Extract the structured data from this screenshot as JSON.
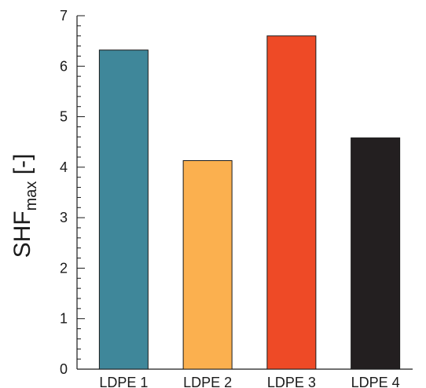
{
  "chart_data": {
    "type": "bar",
    "categories": [
      "LDPE 1",
      "LDPE 2",
      "LDPE 3",
      "LDPE 4"
    ],
    "values": [
      6.32,
      4.13,
      6.6,
      4.58
    ],
    "colors": [
      "#3f879a",
      "#fbb04f",
      "#ee4a26",
      "#231f20"
    ],
    "ylabel": {
      "main": "SHF",
      "sub": "max",
      "unit": " [-]"
    },
    "yticks": [
      0,
      1,
      2,
      3,
      4,
      5,
      6,
      7
    ],
    "ylim": [
      0,
      7
    ],
    "grid": false,
    "legend": "none"
  }
}
